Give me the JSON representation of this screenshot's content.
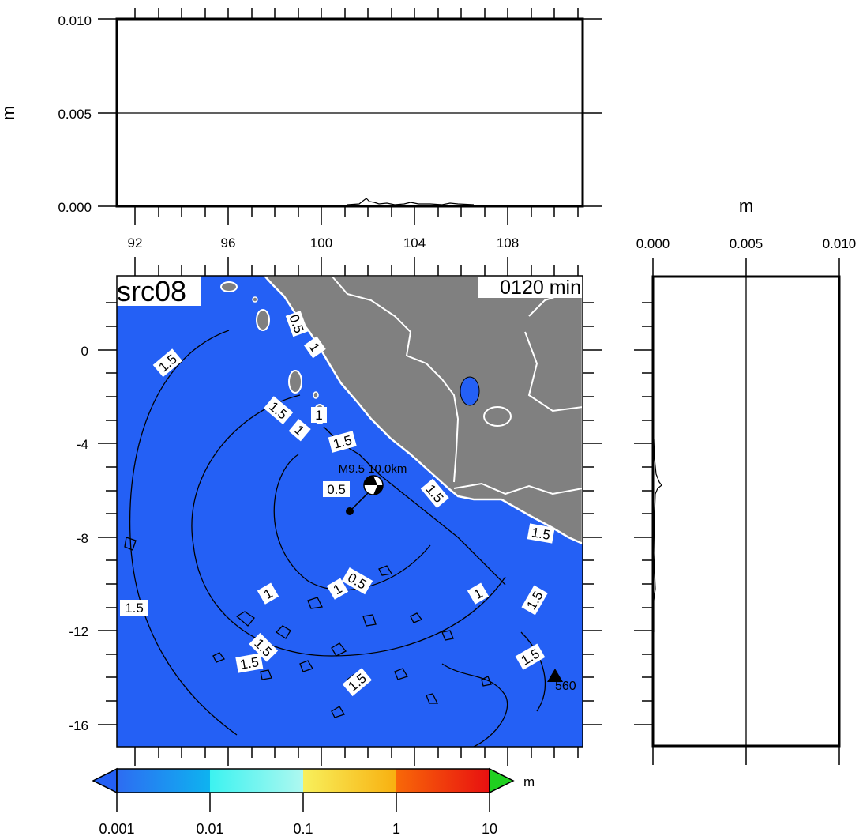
{
  "top_panel": {
    "y_unit": "m",
    "y_ticks": [
      "0.010",
      "0.005",
      "0.000"
    ],
    "x_ticks": [
      "92",
      "96",
      "100",
      "104",
      "108"
    ]
  },
  "right_panel": {
    "x_unit": "m",
    "x_ticks": [
      "0.000",
      "0.005",
      "0.010"
    ]
  },
  "map": {
    "title": "src08",
    "time_label": "0120 min",
    "lat_ticks": [
      "0",
      "-4",
      "-8",
      "-12",
      "-16"
    ],
    "epicenter_label": "M9.5 10.0km",
    "station_label": "560",
    "contour_labels": {
      "c1": "0.5",
      "c2": "1",
      "c3": "1.5",
      "c4": "1.5",
      "c5": "1",
      "c6": "1",
      "c7": "1.5",
      "c8": "0.5",
      "c9": "1.5",
      "c10": "1.5",
      "c11": "1",
      "c12": "1",
      "c13": "0.5",
      "c14": "1",
      "c15": "1.5",
      "c16": "1.5",
      "c17": "1.5",
      "c18": "1.5",
      "c19": "1.5",
      "c20": "1.5"
    },
    "colors": {
      "ocean": "#2460f5",
      "land": "#808080",
      "coastline": "#ffffff"
    }
  },
  "colorbar": {
    "unit": "m",
    "tick_labels": [
      "0.001",
      "0.01",
      "0.1",
      "1",
      "10"
    ],
    "colors": [
      "#2d6cf2",
      "#0eb3f0",
      "#3cf2f0",
      "#aef8f0",
      "#f8f05c",
      "#f8b010",
      "#f86808",
      "#e81010",
      "#20d020",
      "#2460f5"
    ]
  }
}
